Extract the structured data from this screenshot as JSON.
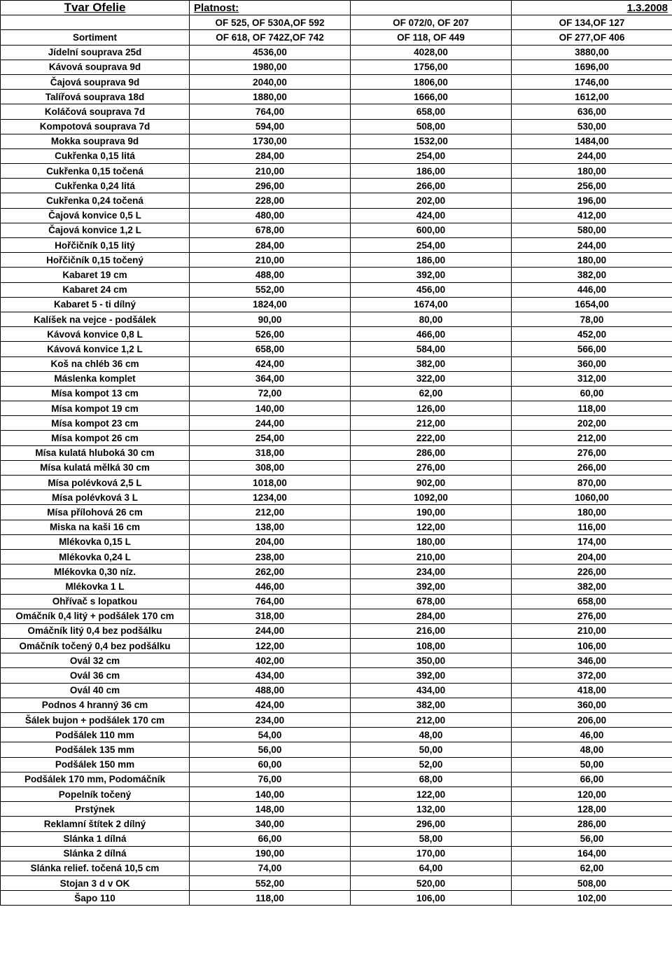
{
  "header": {
    "title": "Tvar Ofelie",
    "platnost_label": "Platnost:",
    "date": "1.3.2008",
    "row2": {
      "c0": "",
      "c1": "OF 525, OF 530A,OF 592",
      "c2": "OF 072/0, OF 207",
      "c3": "OF 134,OF 127"
    },
    "row3": {
      "c0": "Sortiment",
      "c1": "OF 618, OF 742Z,OF 742",
      "c2": "OF 118, OF 449",
      "c3": "OF 277,OF 406"
    }
  },
  "rows": [
    {
      "n": "Jídelní souprava 25d",
      "a": "4536,00",
      "b": "4028,00",
      "c": "3880,00"
    },
    {
      "n": "Kávová souprava 9d",
      "a": "1980,00",
      "b": "1756,00",
      "c": "1696,00"
    },
    {
      "n": "Čajová souprava 9d",
      "a": "2040,00",
      "b": "1806,00",
      "c": "1746,00"
    },
    {
      "n": "Talířová souprava 18d",
      "a": "1880,00",
      "b": "1666,00",
      "c": "1612,00"
    },
    {
      "n": "Koláčová souprava 7d",
      "a": "764,00",
      "b": "658,00",
      "c": "636,00"
    },
    {
      "n": "Kompotová souprava 7d",
      "a": "594,00",
      "b": "508,00",
      "c": "530,00"
    },
    {
      "n": "Mokka souprava 9d",
      "a": "1730,00",
      "b": "1532,00",
      "c": "1484,00"
    },
    {
      "n": "Cukřenka 0,15 litá",
      "a": "284,00",
      "b": "254,00",
      "c": "244,00"
    },
    {
      "n": "Cukřenka 0,15 točená",
      "a": "210,00",
      "b": "186,00",
      "c": "180,00"
    },
    {
      "n": "Cukřenka 0,24 litá",
      "a": "296,00",
      "b": "266,00",
      "c": "256,00"
    },
    {
      "n": "Cukřenka 0,24 točená",
      "a": "228,00",
      "b": "202,00",
      "c": "196,00"
    },
    {
      "n": "Čajová konvice 0,5 L",
      "a": "480,00",
      "b": "424,00",
      "c": "412,00"
    },
    {
      "n": "Čajová konvice 1,2 L",
      "a": "678,00",
      "b": "600,00",
      "c": "580,00"
    },
    {
      "n": "Hořčičník 0,15 litý",
      "a": "284,00",
      "b": "254,00",
      "c": "244,00"
    },
    {
      "n": "Hořčičník 0,15 točený",
      "a": "210,00",
      "b": "186,00",
      "c": "180,00"
    },
    {
      "n": "Kabaret 19 cm",
      "a": "488,00",
      "b": "392,00",
      "c": "382,00"
    },
    {
      "n": "Kabaret 24 cm",
      "a": "552,00",
      "b": "456,00",
      "c": "446,00"
    },
    {
      "n": "Kabaret 5 - ti dílný",
      "a": "1824,00",
      "b": "1674,00",
      "c": "1654,00"
    },
    {
      "n": "Kalíšek na vejce - podšálek",
      "a": "90,00",
      "b": "80,00",
      "c": "78,00"
    },
    {
      "n": "Kávová konvice 0,8 L",
      "a": "526,00",
      "b": "466,00",
      "c": "452,00"
    },
    {
      "n": "Kávová konvice 1,2 L",
      "a": "658,00",
      "b": "584,00",
      "c": "566,00"
    },
    {
      "n": "Koš na chléb 36 cm",
      "a": "424,00",
      "b": "382,00",
      "c": "360,00"
    },
    {
      "n": "Máslenka komplet",
      "a": "364,00",
      "b": "322,00",
      "c": "312,00"
    },
    {
      "n": "Mísa kompot 13 cm",
      "a": "72,00",
      "b": "62,00",
      "c": "60,00"
    },
    {
      "n": "Mísa kompot 19 cm",
      "a": "140,00",
      "b": "126,00",
      "c": "118,00"
    },
    {
      "n": "Mísa kompot 23 cm",
      "a": "244,00",
      "b": "212,00",
      "c": "202,00"
    },
    {
      "n": "Mísa kompot 26 cm",
      "a": "254,00",
      "b": "222,00",
      "c": "212,00"
    },
    {
      "n": "Mísa kulatá hluboká 30 cm",
      "a": "318,00",
      "b": "286,00",
      "c": "276,00"
    },
    {
      "n": "Mísa kulatá mělká 30 cm",
      "a": "308,00",
      "b": "276,00",
      "c": "266,00"
    },
    {
      "n": "Mísa polévková 2,5 L",
      "a": "1018,00",
      "b": "902,00",
      "c": "870,00"
    },
    {
      "n": "Mísa polévková 3 L",
      "a": "1234,00",
      "b": "1092,00",
      "c": "1060,00"
    },
    {
      "n": "Mísa přílohová 26 cm",
      "a": "212,00",
      "b": "190,00",
      "c": "180,00"
    },
    {
      "n": "Miska na kaši 16 cm",
      "a": "138,00",
      "b": "122,00",
      "c": "116,00"
    },
    {
      "n": "Mlékovka 0,15 L",
      "a": "204,00",
      "b": "180,00",
      "c": "174,00"
    },
    {
      "n": "Mlékovka 0,24 L",
      "a": "238,00",
      "b": "210,00",
      "c": "204,00"
    },
    {
      "n": "Mlékovka 0,30 níz.",
      "a": "262,00",
      "b": "234,00",
      "c": "226,00"
    },
    {
      "n": "Mlékovka 1 L",
      "a": "446,00",
      "b": "392,00",
      "c": "382,00"
    },
    {
      "n": "Ohřívač s lopatkou",
      "a": "764,00",
      "b": "678,00",
      "c": "658,00"
    },
    {
      "n": "Omáčník 0,4 litý + podšálek 170 cm",
      "a": "318,00",
      "b": "284,00",
      "c": "276,00"
    },
    {
      "n": "Omáčník litý 0,4 bez podšálku",
      "a": "244,00",
      "b": "216,00",
      "c": "210,00"
    },
    {
      "n": "Omáčník točený 0,4 bez podšálku",
      "a": "122,00",
      "b": "108,00",
      "c": "106,00"
    },
    {
      "n": "Ovál 32 cm",
      "a": "402,00",
      "b": "350,00",
      "c": "346,00"
    },
    {
      "n": "Ovál 36 cm",
      "a": "434,00",
      "b": "392,00",
      "c": "372,00"
    },
    {
      "n": "Ovál 40 cm",
      "a": "488,00",
      "b": "434,00",
      "c": "418,00"
    },
    {
      "n": "Podnos 4 hranný 36 cm",
      "a": "424,00",
      "b": "382,00",
      "c": "360,00"
    },
    {
      "n": "Šálek bujon  + podšálek 170 cm",
      "a": "234,00",
      "b": "212,00",
      "c": "206,00"
    },
    {
      "n": "Podšálek 110 mm",
      "a": "54,00",
      "b": "48,00",
      "c": "46,00"
    },
    {
      "n": "Podšálek 135 mm",
      "a": "56,00",
      "b": "50,00",
      "c": "48,00"
    },
    {
      "n": "Podšálek 150 mm",
      "a": "60,00",
      "b": "52,00",
      "c": "50,00"
    },
    {
      "n": "Podšálek 170 mm, Podomáčník",
      "a": "76,00",
      "b": "68,00",
      "c": "66,00"
    },
    {
      "n": "Popelník točený",
      "a": "140,00",
      "b": "122,00",
      "c": "120,00"
    },
    {
      "n": "Prstýnek",
      "a": "148,00",
      "b": "132,00",
      "c": "128,00"
    },
    {
      "n": "Reklamní štítek 2 dílný",
      "a": "340,00",
      "b": "296,00",
      "c": "286,00"
    },
    {
      "n": "Slánka 1 dílná",
      "a": "66,00",
      "b": "58,00",
      "c": "56,00"
    },
    {
      "n": "Slánka 2 dílná",
      "a": "190,00",
      "b": "170,00",
      "c": "164,00"
    },
    {
      "n": "Slánka relief. točená 10,5 cm",
      "a": "74,00",
      "b": "64,00",
      "c": "62,00"
    },
    {
      "n": "Stojan 3 d v OK",
      "a": "552,00",
      "b": "520,00",
      "c": "508,00"
    },
    {
      "n": "Šapo 110",
      "a": "118,00",
      "b": "106,00",
      "c": "102,00"
    }
  ]
}
